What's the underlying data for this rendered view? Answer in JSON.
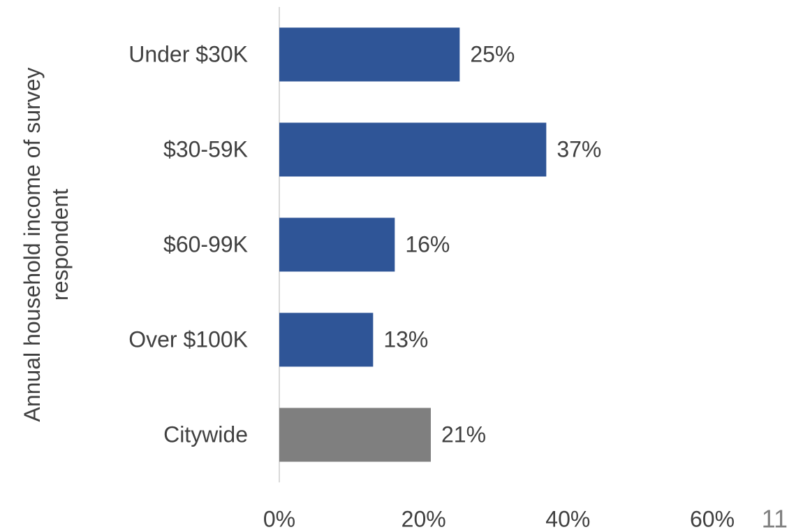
{
  "chart_data": {
    "type": "hbar",
    "y_label": "Annual household income of survey respondent",
    "categories": [
      "Under $30K",
      "$30-59K",
      "$60-99K",
      "Over $100K",
      "Citywide"
    ],
    "values": [
      25,
      37,
      16,
      13,
      21
    ],
    "value_labels": [
      "25%",
      "37%",
      "16%",
      "13%",
      "21%"
    ],
    "colors": [
      "#2f5597",
      "#2f5597",
      "#2f5597",
      "#2f5597",
      "#7f7f7f"
    ],
    "xlim": [
      0,
      60
    ],
    "xticks": [
      {
        "value": 0,
        "label": "0%"
      },
      {
        "value": 20,
        "label": "20%"
      },
      {
        "value": 40,
        "label": "40%"
      },
      {
        "value": 60,
        "label": "60%"
      }
    ],
    "grid": false
  },
  "page_number": "11"
}
